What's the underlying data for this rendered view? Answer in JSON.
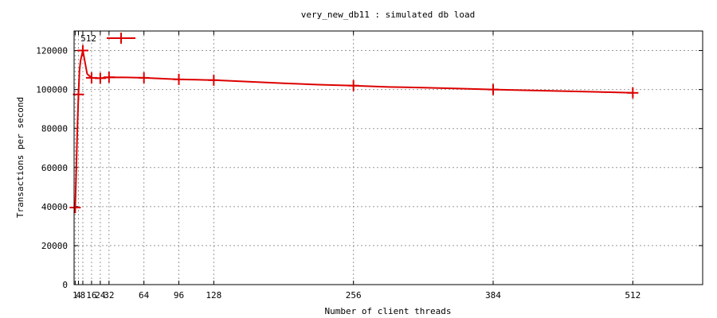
{
  "chart_data": {
    "type": "line",
    "title": "very_new_db11 : simulated db load",
    "xlabel": "Number of client threads",
    "ylabel": "Transactions per second",
    "xlim": [
      0,
      576
    ],
    "ylim": [
      0,
      130000
    ],
    "x_ticks": [
      1,
      4,
      8,
      16,
      24,
      32,
      64,
      96,
      128,
      256,
      384,
      512
    ],
    "x_tick_labels": [
      "1",
      "4",
      "8",
      "16",
      "24",
      "32",
      "64",
      "96",
      "128",
      "256",
      "384",
      "512"
    ],
    "y_ticks": [
      0,
      20000,
      40000,
      60000,
      80000,
      100000,
      120000
    ],
    "y_tick_labels": [
      "0",
      "20000",
      "40000",
      "60000",
      "80000",
      "100000",
      "120000"
    ],
    "grid": true,
    "legend_position": "top-left",
    "colors": {
      "series": "#dd0000",
      "grid": "#999999",
      "axis": "#000000"
    },
    "series": [
      {
        "name": "512",
        "x": [
          1,
          2,
          3,
          4,
          5,
          6,
          8,
          12,
          16,
          24,
          32,
          48,
          64,
          80,
          96,
          112,
          128,
          160,
          192,
          224,
          256,
          288,
          320,
          352,
          384,
          416,
          448,
          480,
          512
        ],
        "y": [
          39500,
          58000,
          80000,
          97500,
          110000,
          115000,
          120000,
          108000,
          106000,
          105800,
          106300,
          106200,
          106000,
          105600,
          105200,
          105000,
          104800,
          104000,
          103200,
          102500,
          102000,
          101300,
          101000,
          100500,
          100000,
          99600,
          99200,
          98800,
          98300
        ],
        "markers_x": [
          1,
          4,
          8,
          16,
          24,
          32,
          64,
          96,
          128,
          256,
          384,
          512
        ],
        "markers_y": [
          39500,
          97500,
          120000,
          106000,
          105800,
          106300,
          106000,
          105200,
          104800,
          102000,
          100000,
          98300
        ]
      }
    ]
  }
}
